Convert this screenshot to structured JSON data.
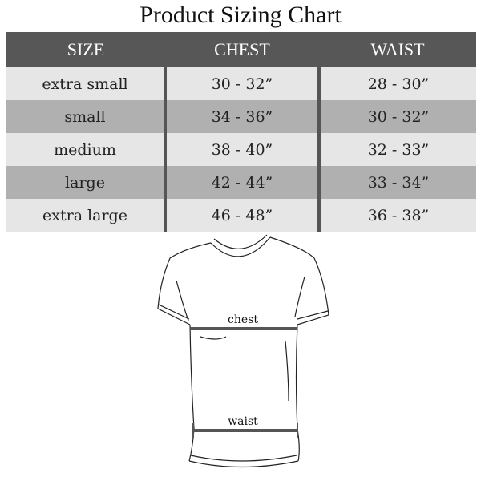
{
  "title": "Product Sizing Chart",
  "table": {
    "headers": [
      "SIZE",
      "CHEST",
      "WAIST"
    ],
    "rows": [
      [
        "extra small",
        "30 - 32”",
        "28 - 30”"
      ],
      [
        "small",
        "34 - 36”",
        "30 - 32”"
      ],
      [
        "medium",
        "38 - 40”",
        "32 - 33”"
      ],
      [
        "large",
        "42 - 44”",
        "33 - 34”"
      ],
      [
        "extra large",
        "46 - 48”",
        "36 - 38”"
      ]
    ]
  },
  "diagram": {
    "chest_label": "chest",
    "waist_label": "waist"
  },
  "colors": {
    "header": "#575757",
    "row_light": "#e6e6e6",
    "row_dark": "#b0b0b0"
  }
}
